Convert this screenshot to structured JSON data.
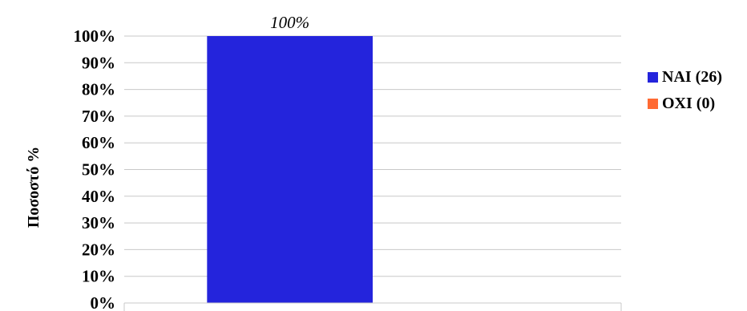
{
  "chart_data": {
    "type": "bar",
    "categories": [
      ""
    ],
    "series": [
      {
        "name": "NAI (26)",
        "values": [
          100
        ],
        "color": "#2424dc"
      },
      {
        "name": "OXI (0)",
        "values": [
          0
        ],
        "color": "#ff6a33"
      }
    ],
    "data_labels": [
      "100%"
    ],
    "ylabel": "Ποσοστό %",
    "ylim": [
      0,
      100
    ],
    "yticks": [
      0,
      10,
      20,
      30,
      40,
      50,
      60,
      70,
      80,
      90,
      100
    ],
    "ytick_labels": [
      "0%",
      "10%",
      "20%",
      "30%",
      "40%",
      "50%",
      "60%",
      "70%",
      "80%",
      "90%",
      "100%"
    ],
    "grid": true,
    "legend_position": "right"
  }
}
